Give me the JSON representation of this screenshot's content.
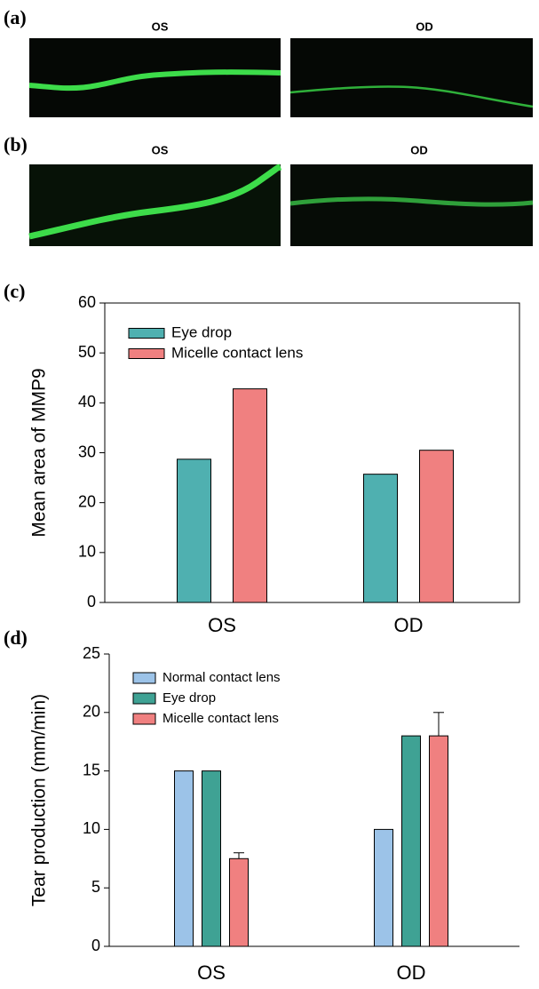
{
  "panels": [
    {
      "label": "(a)",
      "images": [
        "OS",
        "OD"
      ]
    },
    {
      "label": "(b)",
      "images": [
        "OS",
        "OD"
      ]
    }
  ],
  "chart_data": [
    {
      "type": "bar",
      "panel_label": "(c)",
      "y_label": "Mean area of MMP9",
      "categories": [
        "OS",
        "OD"
      ],
      "series": [
        {
          "name": "Eye drop",
          "color": "#4fb0b0",
          "values": [
            28.7,
            25.7
          ]
        },
        {
          "name": "Micelle contact lens",
          "color": "#f08080",
          "values": [
            42.8,
            30.5
          ]
        }
      ],
      "ylim": [
        0,
        60
      ],
      "yticks": [
        0,
        10,
        20,
        30,
        40,
        50,
        60
      ],
      "legend": "upper left",
      "frame": true
    },
    {
      "type": "bar",
      "panel_label": "(d)",
      "y_label": "Tear production (mm/min)",
      "categories": [
        "OS",
        "OD"
      ],
      "series": [
        {
          "name": "Normal contact lens",
          "color": "#9cc3e8",
          "values": [
            15,
            10
          ]
        },
        {
          "name": "Eye drop",
          "color": "#3fa294",
          "values": [
            15,
            18
          ]
        },
        {
          "name": "Micelle contact lens",
          "color": "#f08080",
          "values": [
            7.5,
            18
          ],
          "errors": [
            0.5,
            2
          ]
        }
      ],
      "ylim": [
        0,
        25
      ],
      "yticks": [
        0,
        5,
        10,
        15,
        20,
        25
      ],
      "legend": "upper left",
      "frame": false
    }
  ]
}
